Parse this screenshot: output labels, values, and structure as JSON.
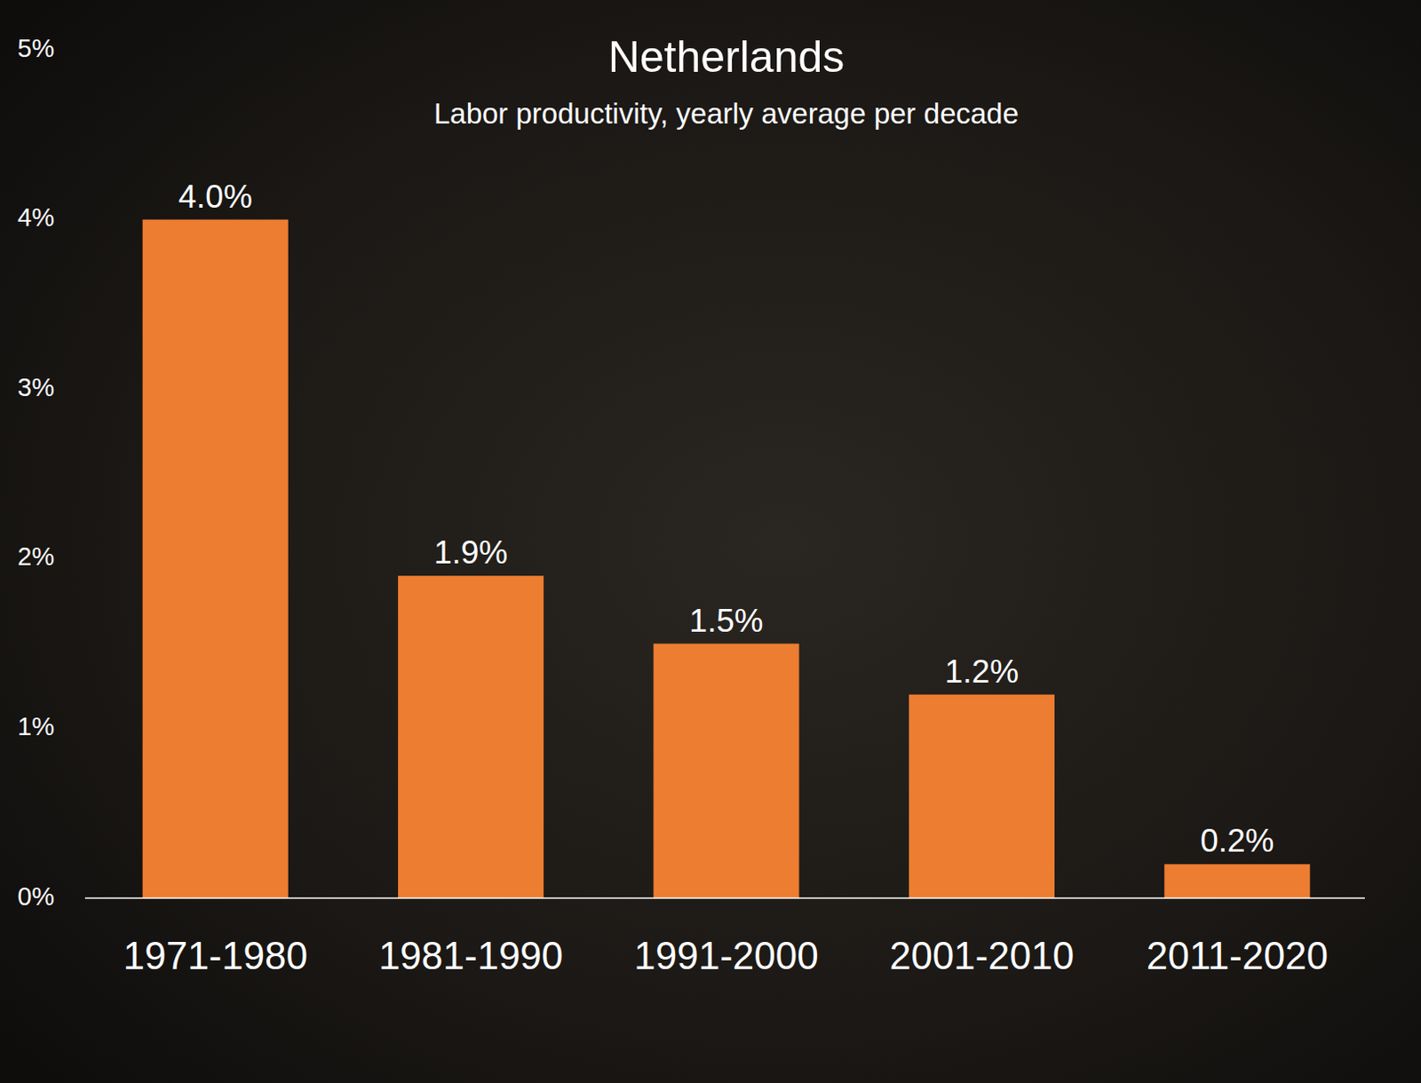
{
  "chart_data": {
    "type": "bar",
    "title": "Netherlands",
    "subtitle": "Labor productivity, yearly average per decade",
    "categories": [
      "1971-1980",
      "1981-1990",
      "1991-2000",
      "2001-2010",
      "2011-2020"
    ],
    "values": [
      4.0,
      1.9,
      1.5,
      1.2,
      0.2
    ],
    "value_labels": [
      "4.0%",
      "1.9%",
      "1.5%",
      "1.2%",
      "0.2%"
    ],
    "color": "#ed7d31",
    "ylim": [
      0,
      5
    ],
    "yticks": [
      {
        "value": 0,
        "label": "0%"
      },
      {
        "value": 1,
        "label": "1%"
      },
      {
        "value": 2,
        "label": "2%"
      },
      {
        "value": 3,
        "label": "3%"
      },
      {
        "value": 4,
        "label": "4%"
      },
      {
        "value": 5,
        "label": "5%"
      }
    ],
    "grid": false,
    "data_labels": true
  }
}
